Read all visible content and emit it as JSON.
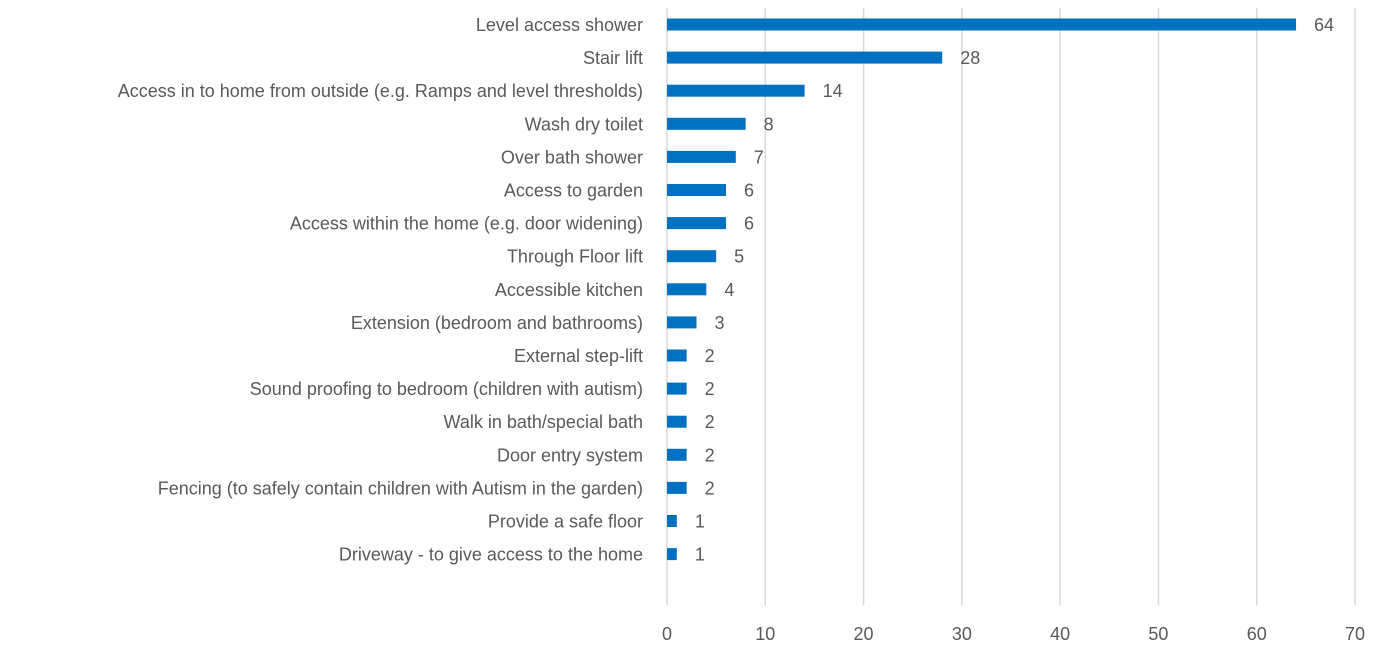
{
  "chart_data": {
    "type": "bar",
    "orientation": "horizontal",
    "categories": [
      "Level access shower",
      "Stair lift",
      "Access in to home from outside (e.g. Ramps and level thresholds)",
      "Wash dry toilet",
      "Over bath shower",
      "Access to garden",
      "Access within the home (e.g. door widening)",
      "Through Floor lift",
      "Accessible kitchen",
      "Extension (bedroom and bathrooms)",
      "External step-lift",
      "Sound proofing to bedroom (children with autism)",
      "Walk in bath/special bath",
      "Door entry system",
      "Fencing (to safely contain children with Autism in the garden)",
      "Provide a safe floor",
      "Driveway - to give access to the home"
    ],
    "values": [
      64,
      28,
      14,
      8,
      7,
      6,
      6,
      5,
      4,
      3,
      2,
      2,
      2,
      2,
      2,
      1,
      1
    ],
    "data_labels": [
      "64",
      "28",
      "14",
      "8",
      "7",
      "6",
      "6",
      "5",
      "4",
      "3",
      "2",
      "2",
      "2",
      "2",
      "2",
      "1",
      "1"
    ],
    "xlim": [
      0,
      70
    ],
    "xticks": [
      "0",
      "10",
      "20",
      "30",
      "40",
      "50",
      "60",
      "70"
    ],
    "grid": "vertical",
    "legend": "none",
    "title": "",
    "xlabel": "",
    "ylabel": "",
    "bar_color": "#0070C0",
    "grid_color": "#D9D9D9",
    "text_color": "#595959"
  }
}
